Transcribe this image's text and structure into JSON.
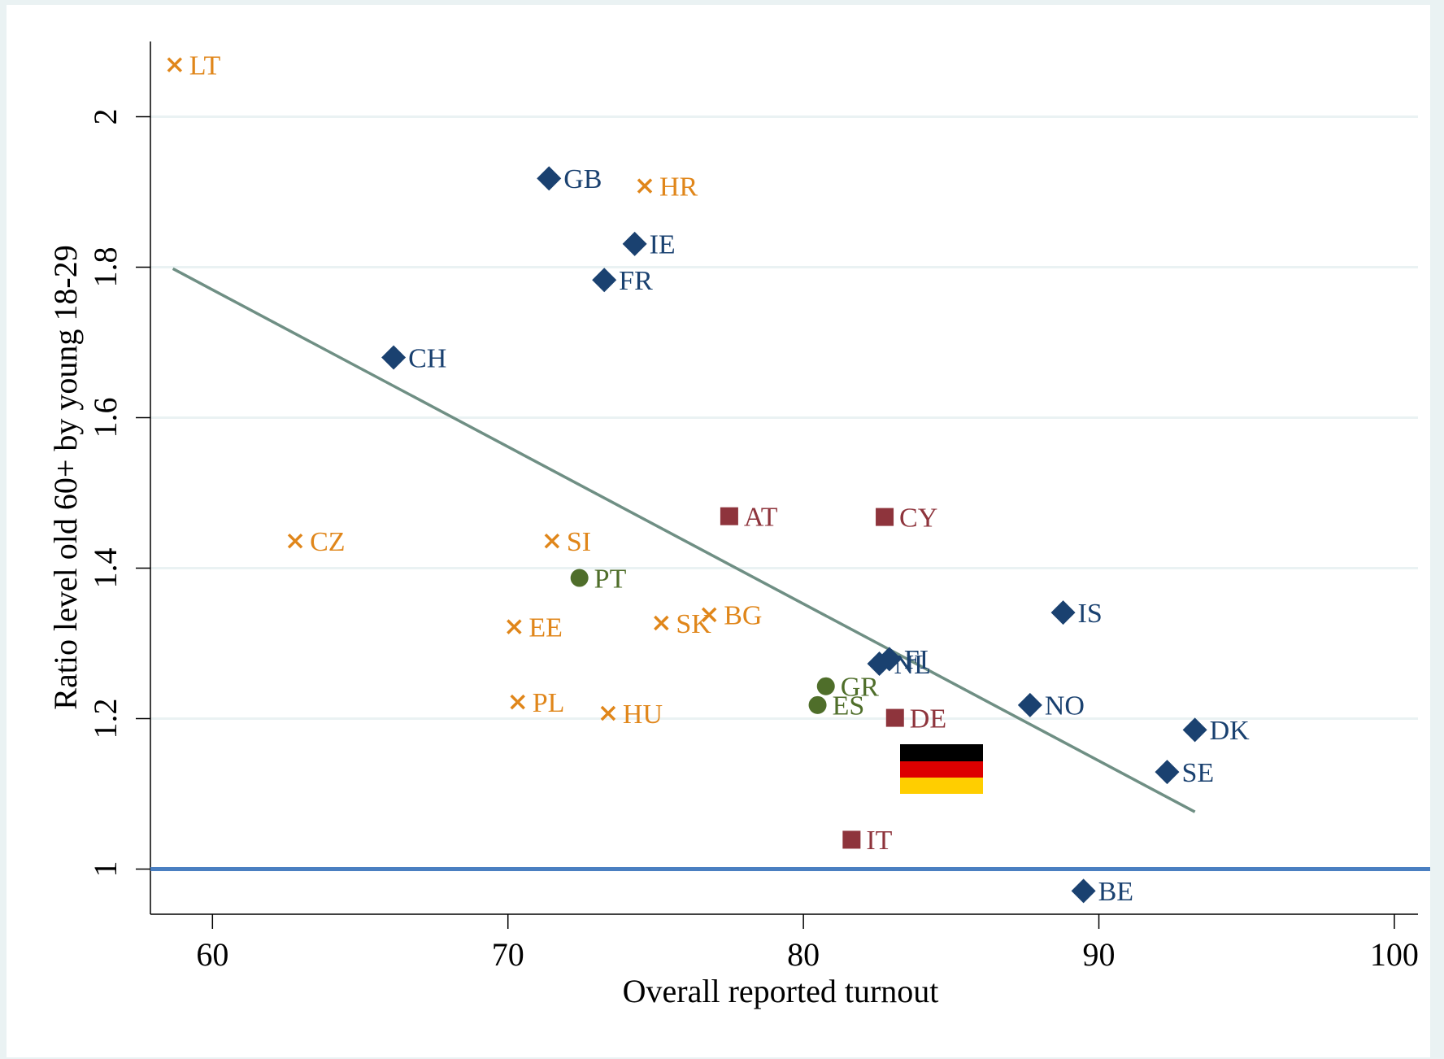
{
  "chart_data": {
    "type": "scatter",
    "x_label": "Overall reported turnout",
    "y_label": "Ratio level old 60+ by young 18-29",
    "xlim": [
      57.9,
      100.8
    ],
    "ylim": [
      0.94,
      2.1
    ],
    "xticks": [
      60,
      70,
      80,
      90,
      100
    ],
    "yticks": [
      1,
      1.2,
      1.4,
      1.6,
      1.8,
      2
    ],
    "grid": true,
    "series": [
      {
        "marker": "x",
        "color": "#e0861a",
        "labels": [
          "LT",
          "HR",
          "CZ",
          "SI",
          "EE",
          "SK",
          "BG",
          "PL",
          "HU"
        ],
        "x": [
          58.72,
          74.63,
          62.8,
          71.49,
          70.21,
          75.19,
          76.81,
          70.33,
          73.39
        ],
        "values": [
          2.069,
          1.908,
          1.436,
          1.436,
          1.322,
          1.327,
          1.338,
          1.222,
          1.207
        ]
      },
      {
        "marker": "diamond",
        "color": "#1a4170",
        "labels": [
          "GB",
          "IE",
          "FR",
          "CH",
          "IS",
          "FI",
          "NL",
          "NO",
          "DK",
          "SE",
          "BE"
        ],
        "x": [
          71.39,
          74.29,
          73.26,
          66.13,
          88.79,
          82.91,
          82.57,
          87.67,
          93.25,
          92.31,
          89.48
        ],
        "values": [
          1.918,
          1.831,
          1.783,
          1.68,
          1.341,
          1.279,
          1.273,
          1.218,
          1.185,
          1.129,
          0.971
        ]
      },
      {
        "marker": "square",
        "color": "#8e343c",
        "labels": [
          "AT",
          "CY",
          "DE",
          "IT"
        ],
        "x": [
          77.49,
          82.75,
          83.1,
          81.63
        ],
        "values": [
          1.469,
          1.468,
          1.201,
          1.039
        ]
      },
      {
        "marker": "circle",
        "color": "#4f6e2a",
        "labels": [
          "PT",
          "GR",
          "ES"
        ],
        "x": [
          72.42,
          80.76,
          80.48
        ],
        "values": [
          1.387,
          1.243,
          1.218
        ]
      }
    ],
    "fit": {
      "x": [
        58.66,
        93.25
      ],
      "values": [
        1.798,
        1.076
      ],
      "color": "#6f8f84"
    },
    "hline": {
      "value": 1,
      "color": "#4a7fc1"
    }
  }
}
